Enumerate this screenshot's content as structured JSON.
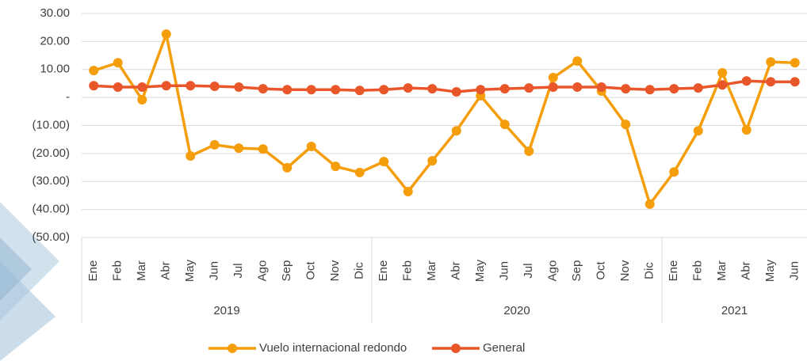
{
  "chart_data": {
    "type": "line",
    "groups": [
      {
        "name": "2019",
        "categories": [
          "Ene",
          "Feb",
          "Mar",
          "Abr",
          "May",
          "Jun",
          "Jul",
          "Ago",
          "Sep",
          "Oct",
          "Nov",
          "Dic"
        ]
      },
      {
        "name": "2020",
        "categories": [
          "Ene",
          "Feb",
          "Mar",
          "Abr",
          "May",
          "Jun",
          "Jul",
          "Ago",
          "Sep",
          "Oct",
          "Nov",
          "Dic"
        ]
      },
      {
        "name": "2021",
        "categories": [
          "Ene",
          "Feb",
          "Mar",
          "Abr",
          "May",
          "Jun"
        ]
      }
    ],
    "series": [
      {
        "name": "Vuelo internacional redondo",
        "color": "#f59e0b",
        "values": [
          9.6,
          12.4,
          -0.8,
          22.6,
          -20.9,
          -16.9,
          -18.1,
          -18.4,
          -25.1,
          -17.5,
          -24.6,
          -26.8,
          -22.9,
          -33.6,
          -22.6,
          -11.9,
          0.6,
          -9.6,
          -19.2,
          7.1,
          13.0,
          2.3,
          -9.6,
          -38.1,
          -26.6,
          -11.9,
          8.8,
          -11.6,
          12.7,
          12.4
        ]
      },
      {
        "name": "General",
        "color": "#e8562a",
        "values": [
          4.2,
          3.7,
          3.7,
          4.2,
          4.2,
          4.0,
          3.7,
          3.1,
          2.8,
          2.8,
          2.8,
          2.5,
          2.8,
          3.4,
          3.1,
          2.0,
          2.8,
          3.1,
          3.4,
          3.7,
          3.7,
          3.7,
          3.1,
          2.8,
          3.1,
          3.4,
          4.5,
          5.9,
          5.6,
          5.6
        ]
      }
    ],
    "ylim": [
      -50,
      30
    ],
    "yticks": [
      {
        "value": -50,
        "label": "(50.00)"
      },
      {
        "value": -40,
        "label": "(40.00)"
      },
      {
        "value": -30,
        "label": "(30.00)"
      },
      {
        "value": -20,
        "label": "(20.00)"
      },
      {
        "value": -10,
        "label": "(10.00)"
      },
      {
        "value": 0,
        "label": "-"
      },
      {
        "value": 10,
        "label": "10.00"
      },
      {
        "value": 20,
        "label": "20.00"
      },
      {
        "value": 30,
        "label": "30.00"
      }
    ],
    "grid": true,
    "legend": "bottom"
  }
}
